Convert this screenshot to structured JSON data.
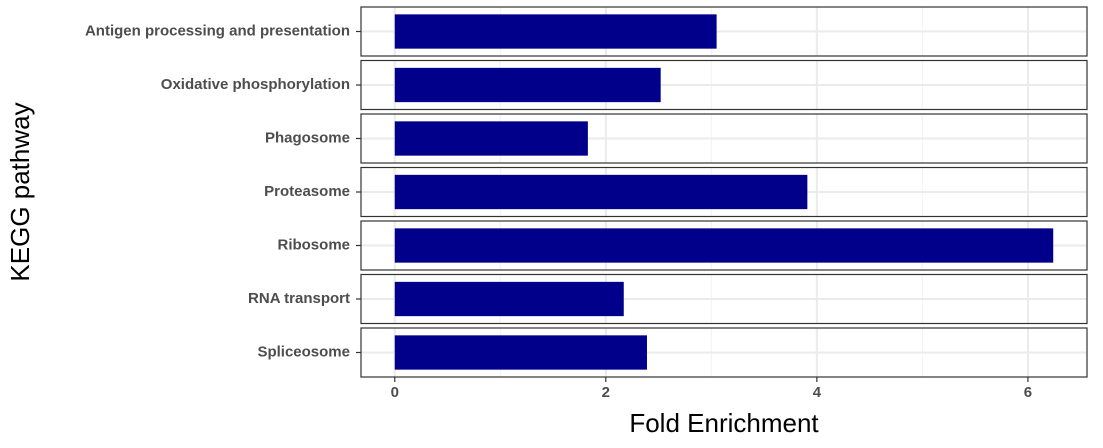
{
  "chart_data": {
    "type": "bar",
    "orientation": "horizontal",
    "facet_rows": true,
    "categories": [
      "Antigen processing and presentation",
      "Oxidative phosphorylation",
      "Phagosome",
      "Proteasome",
      "Ribosome",
      "RNA transport",
      "Spliceosome"
    ],
    "values": [
      3.05,
      2.52,
      1.83,
      3.91,
      6.24,
      2.17,
      2.39
    ],
    "color": "#00008b",
    "xlim": [
      -0.32,
      6.56
    ],
    "xticks": [
      0,
      2,
      4,
      6
    ],
    "minor_xticks": [
      1,
      3,
      5
    ],
    "grid": true,
    "xlabel": "Fold Enrichment",
    "ylabel": "KEGG pathway"
  }
}
